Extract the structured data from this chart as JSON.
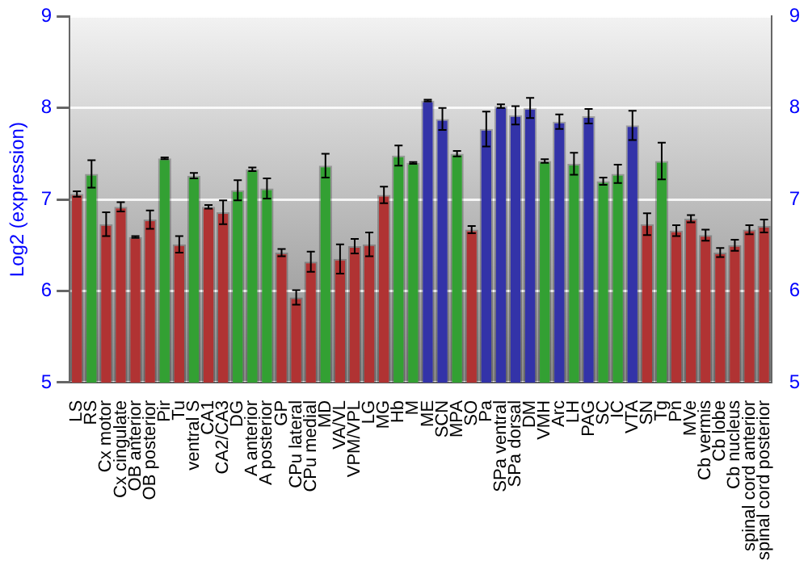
{
  "chart_data": {
    "type": "bar",
    "ylabel": "Log2 (expression)",
    "categories": [
      "LS",
      "RS",
      "Cx motor",
      "Cx cingulate",
      "OB anterior",
      "OB posterior",
      "Pir",
      "Tu",
      "ventral S",
      "CA1",
      "CA2/CA3",
      "DG",
      "A anterior",
      "A posterior",
      "GP",
      "CPu lateral",
      "CPu medial",
      "MD",
      "VA/VL",
      "VPM/VPL",
      "LG",
      "MG",
      "Hb",
      "M",
      "ME",
      "SCN",
      "MPA",
      "SO",
      "Pa",
      "SPa ventral",
      "SPa dorsal",
      "DM",
      "VMH",
      "Arc",
      "LH",
      "PAG",
      "SC",
      "IC",
      "VTA",
      "SN",
      "Tg",
      "Pn",
      "MVe",
      "Cb vermis",
      "Cb lobe",
      "Cb nucleus",
      "spinal cord anterior",
      "spinal cord posterior"
    ],
    "values": [
      7.06,
      7.28,
      6.73,
      6.92,
      6.59,
      6.78,
      7.45,
      6.51,
      7.26,
      6.92,
      6.86,
      7.1,
      7.33,
      7.12,
      6.42,
      5.93,
      6.32,
      7.37,
      6.35,
      6.49,
      6.51,
      7.05,
      7.48,
      7.4,
      8.08,
      7.88,
      7.5,
      6.67,
      7.77,
      8.02,
      7.92,
      8.0,
      7.42,
      7.85,
      7.39,
      7.91,
      7.2,
      7.28,
      7.81,
      6.73,
      7.42,
      6.66,
      6.79,
      6.61,
      6.42,
      6.5,
      6.67,
      6.71
    ],
    "errors": [
      0.03,
      0.15,
      0.13,
      0.05,
      0.01,
      0.1,
      0.01,
      0.09,
      0.03,
      0.02,
      0.13,
      0.11,
      0.02,
      0.11,
      0.04,
      0.08,
      0.11,
      0.13,
      0.16,
      0.08,
      0.13,
      0.09,
      0.11,
      0.01,
      0.01,
      0.12,
      0.03,
      0.04,
      0.19,
      0.02,
      0.1,
      0.11,
      0.02,
      0.08,
      0.12,
      0.08,
      0.04,
      0.1,
      0.16,
      0.12,
      0.2,
      0.06,
      0.04,
      0.06,
      0.05,
      0.06,
      0.05,
      0.07
    ],
    "colors": [
      "#b03333",
      "#33a033",
      "#b03333",
      "#b03333",
      "#b03333",
      "#b03333",
      "#33a033",
      "#b03333",
      "#33a033",
      "#b03333",
      "#b03333",
      "#33a033",
      "#33a033",
      "#33a033",
      "#b03333",
      "#b03333",
      "#b03333",
      "#33a033",
      "#b03333",
      "#b03333",
      "#b03333",
      "#b03333",
      "#33a033",
      "#33a033",
      "#3333a8",
      "#3333a8",
      "#33a033",
      "#b03333",
      "#3333a8",
      "#3333a8",
      "#3333a8",
      "#3333a8",
      "#33a033",
      "#3333a8",
      "#33a033",
      "#3333a8",
      "#33a033",
      "#33a033",
      "#3333a8",
      "#b03333",
      "#33a033",
      "#b03333",
      "#b03333",
      "#b03333",
      "#b03333",
      "#b03333",
      "#b03333",
      "#b03333"
    ],
    "ylim": [
      5,
      9
    ],
    "yticks": [
      5,
      6,
      7,
      8,
      9
    ],
    "y2lim": [
      5,
      9
    ],
    "y2ticks": [
      5,
      6,
      7,
      8,
      9
    ],
    "grid": "y",
    "legend": false
  }
}
